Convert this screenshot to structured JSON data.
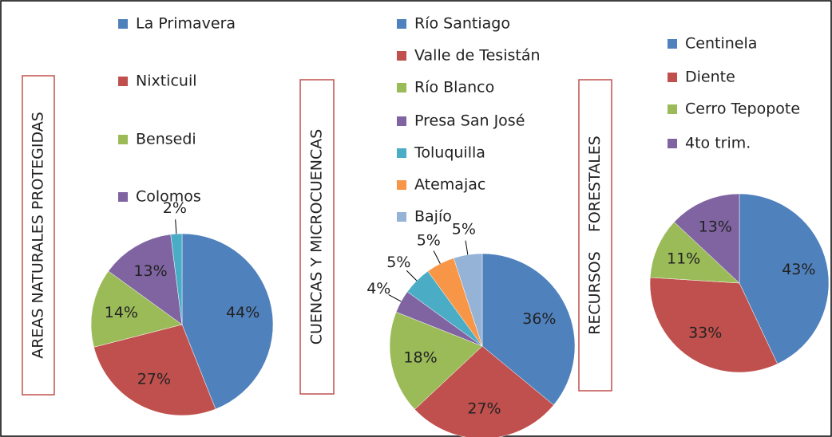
{
  "chart_data": [
    {
      "type": "pie",
      "title": "AREAS NATURALES PROTEGIDAS",
      "categories": [
        "La Primavera",
        "Nixticuil",
        "Bensedi",
        "Colomos",
        null
      ],
      "values": [
        44,
        27,
        14,
        13,
        2
      ],
      "value_labels": [
        "44%",
        "27%",
        "14%",
        "13%",
        "2%"
      ],
      "colors": [
        "#4f81bd",
        "#c0504d",
        "#9bbb59",
        "#8064a2",
        "#4bacc6"
      ]
    },
    {
      "type": "pie",
      "title": "CUENCAS Y MICROCUENCAS",
      "categories": [
        "Río Santiago",
        "Valle de Tesistán",
        "Río Blanco",
        "Presa San José",
        "Toluquilla",
        "Atemajac",
        "Bajío"
      ],
      "values": [
        36,
        27,
        18,
        4,
        5,
        5,
        5
      ],
      "value_labels": [
        "36%",
        "27%",
        "18%",
        "4%",
        "5%",
        "5%",
        "5%"
      ],
      "colors": [
        "#4f81bd",
        "#c0504d",
        "#9bbb59",
        "#8064a2",
        "#4bacc6",
        "#f79646",
        "#95b3d7"
      ]
    },
    {
      "type": "pie",
      "title": "RECURSOS    FORESTALES",
      "categories": [
        "Centinela",
        "Diente",
        "Cerro Tepopote",
        "4to trim."
      ],
      "values": [
        43,
        33,
        11,
        13
      ],
      "value_labels": [
        "43%",
        "33%",
        "11%",
        "13%"
      ],
      "colors": [
        "#4f81bd",
        "#c0504d",
        "#9bbb59",
        "#8064a2"
      ]
    }
  ]
}
